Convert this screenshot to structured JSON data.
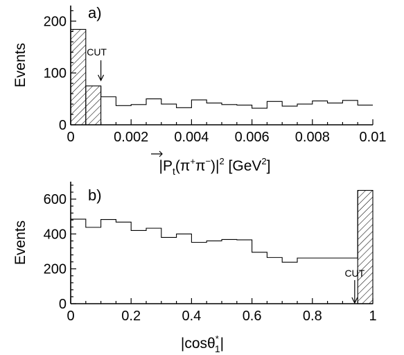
{
  "chart_data": [
    {
      "type": "histogram",
      "panel_label": "a)",
      "xlabel": {
        "pre": "|",
        "vec": "P",
        "sub": "t",
        "mid": "(π",
        "sup1": "+",
        "mid2": "π",
        "sup2": "−",
        "post": ")|",
        "pow": "2",
        "unit": " [GeV",
        "unitpow": "2",
        "end": "]"
      },
      "ylabel": "Events",
      "xlim": [
        0,
        0.01
      ],
      "ylim": [
        0,
        230
      ],
      "xticks": [
        0,
        0.002,
        0.004,
        0.006,
        0.008,
        0.01
      ],
      "xtick_labels": [
        "0",
        "0.002",
        "0.004",
        "0.006",
        "0.008",
        "0.01"
      ],
      "yticks": [
        0,
        100,
        200
      ],
      "ytick_labels": [
        "0",
        "100",
        "200"
      ],
      "bin_edges": [
        0,
        0.0005,
        0.001,
        0.0015,
        0.002,
        0.0025,
        0.003,
        0.0035,
        0.004,
        0.0045,
        0.005,
        0.0055,
        0.006,
        0.0065,
        0.007,
        0.0075,
        0.008,
        0.0085,
        0.009,
        0.0095,
        0.01
      ],
      "values": [
        184,
        75,
        54,
        37,
        39,
        50,
        40,
        33,
        48,
        42,
        39,
        38,
        32,
        45,
        36,
        40,
        46,
        42,
        47,
        38
      ],
      "hatched_bins": [
        0,
        1
      ],
      "cut": {
        "label": "CUT",
        "x": 0.001
      }
    },
    {
      "type": "histogram",
      "panel_label": "b)",
      "xlabel": {
        "pre": "|cosθ",
        "sup": "*",
        "sub": "1",
        "post": "|"
      },
      "ylabel": "Events",
      "xlim": [
        0,
        1
      ],
      "ylim": [
        0,
        700
      ],
      "xticks": [
        0,
        0.2,
        0.4,
        0.6,
        0.8,
        1
      ],
      "xtick_labels": [
        "0",
        "0.2",
        "0.4",
        "0.6",
        "0.8",
        "1"
      ],
      "yticks": [
        0,
        200,
        400,
        600
      ],
      "ytick_labels": [
        "0",
        "200",
        "400",
        "600"
      ],
      "bin_edges": [
        0,
        0.05,
        0.1,
        0.15,
        0.2,
        0.25,
        0.3,
        0.35,
        0.4,
        0.45,
        0.5,
        0.55,
        0.6,
        0.65,
        0.7,
        0.75,
        0.8,
        0.85,
        0.9,
        0.95,
        1
      ],
      "values": [
        485,
        438,
        483,
        468,
        420,
        433,
        380,
        400,
        352,
        360,
        368,
        366,
        295,
        265,
        238,
        262,
        262,
        262,
        262,
        650
      ],
      "hatched_bins": [
        19
      ],
      "cut": {
        "label": "CUT",
        "x": 0.94
      }
    }
  ]
}
